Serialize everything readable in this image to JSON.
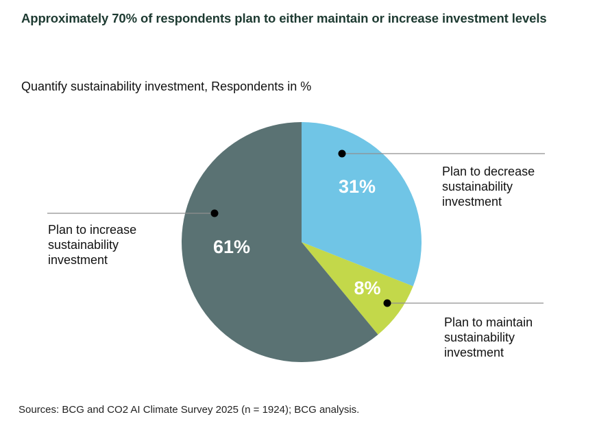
{
  "title": "Approximately 70% of respondents plan to either maintain or increase investment levels",
  "subtitle": "Quantify sustainability investment, Respondents in %",
  "source": "Sources: BCG and CO2 AI Climate Survey 2025 (n = 1924); BCG analysis.",
  "chart_data": {
    "type": "pie",
    "title": "Quantify sustainability investment, Respondents in %",
    "start": "12 o'clock",
    "direction": "clockwise",
    "slices": [
      {
        "key": "decrease",
        "label": "Plan to decrease sustainability investment",
        "label_lines": [
          "Plan to decrease",
          "sustainability",
          "investment"
        ],
        "value": 31,
        "value_label": "31%",
        "color": "#70c5e6"
      },
      {
        "key": "maintain",
        "label": "Plan to maintain sustainability investment",
        "label_lines": [
          "Plan to maintain",
          "sustainability",
          "investment"
        ],
        "value": 8,
        "value_label": "8%",
        "color": "#c3d84a"
      },
      {
        "key": "increase",
        "label": "Plan to increase sustainability investment",
        "label_lines": [
          "Plan to increase",
          "sustainability",
          "investment"
        ],
        "value": 61,
        "value_label": "61%",
        "color": "#5a7273"
      }
    ],
    "legend_placement": "callouts with leader lines"
  }
}
